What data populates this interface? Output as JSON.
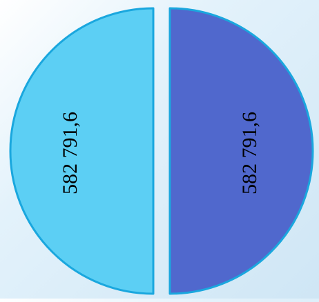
{
  "chart_data": {
    "type": "pie",
    "title": "",
    "slices": [
      {
        "value": 582791.6,
        "label": "582 791,6",
        "color": "#5ccff4"
      },
      {
        "value": 582791.6,
        "label": "582 791,6",
        "color": "#5068cd"
      }
    ],
    "slice_border_color": "#1aa7de",
    "exploded": true,
    "legend": "none"
  }
}
